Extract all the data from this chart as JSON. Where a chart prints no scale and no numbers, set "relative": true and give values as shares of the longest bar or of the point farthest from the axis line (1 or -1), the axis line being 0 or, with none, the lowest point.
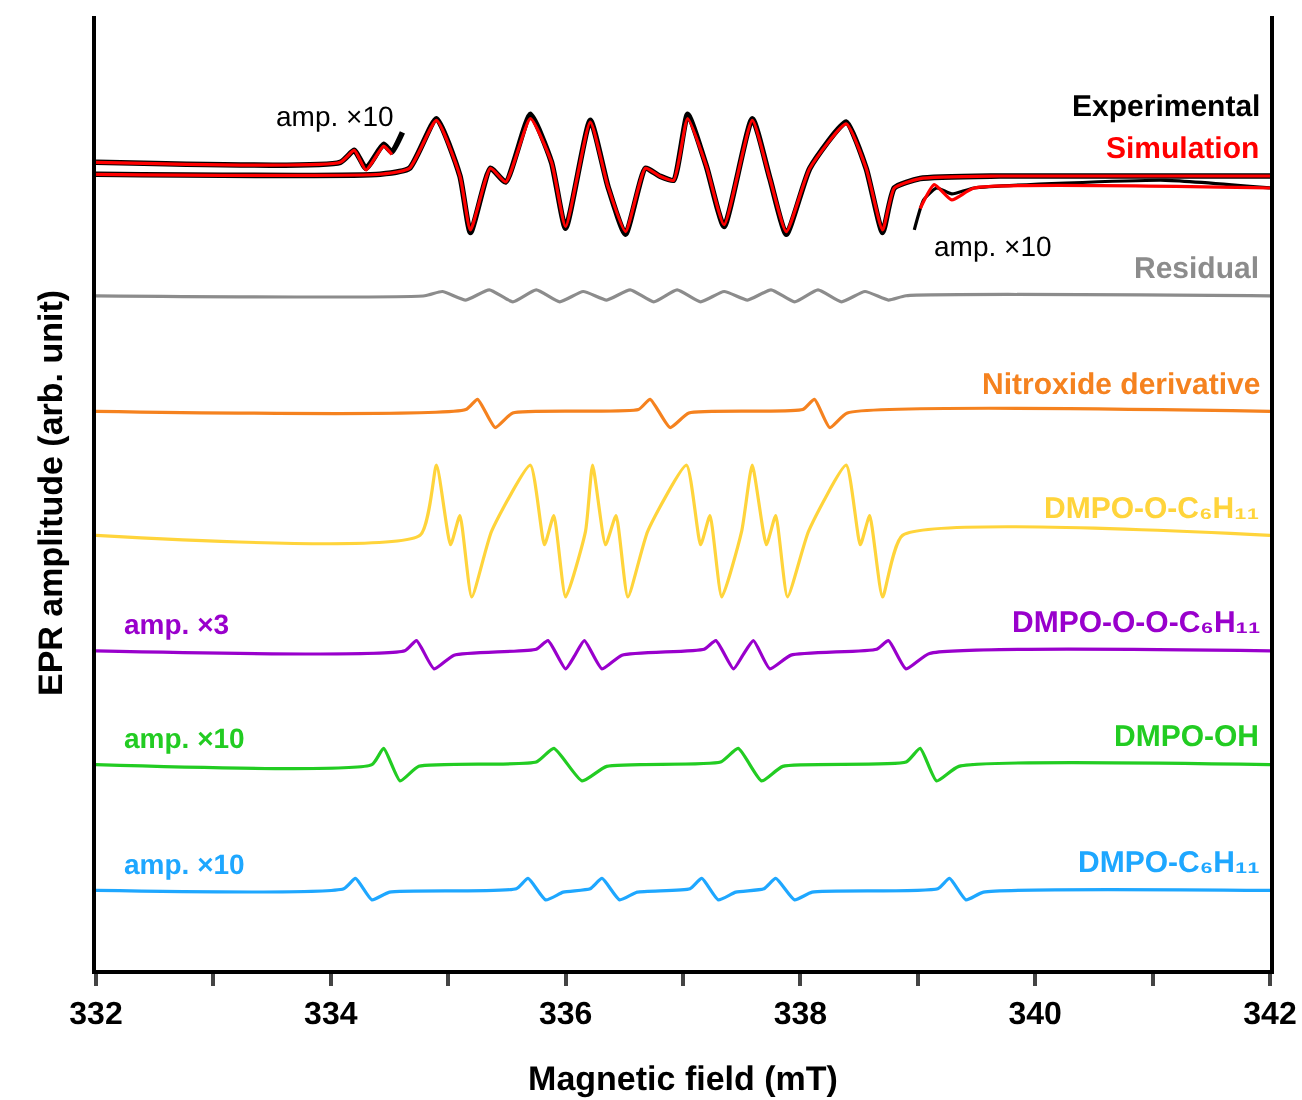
{
  "chart_data": {
    "type": "line",
    "relative": true,
    "xlabel": "Magnetic field (mT)",
    "ylabel": "EPR amplitude (arb. unit)",
    "xlim": [
      332,
      342
    ],
    "xticks": [
      332,
      {
        "value": 333,
        "label": null
      },
      334,
      {
        "value": 335,
        "label": null
      },
      336,
      {
        "value": 337,
        "label": null
      },
      338,
      {
        "value": 339,
        "label": null
      },
      340,
      {
        "value": 341,
        "label": null
      },
      342
    ],
    "tick_labels": "x",
    "legend": false,
    "series": [
      {
        "name": "Experimental",
        "color": "#000000",
        "x": [
          332,
          334.42,
          334.67,
          334.9,
          335.1,
          335.19,
          335.36,
          335.49,
          335.7,
          335.88,
          336.0,
          336.21,
          336.36,
          336.51,
          336.68,
          336.8,
          336.92,
          337.04,
          337.2,
          337.35,
          337.59,
          337.74,
          337.88,
          338.08,
          338.39,
          338.56,
          338.7,
          338.8,
          339.02,
          339.7,
          342
        ],
        "values": [
          0.93,
          0.93,
          0.937,
          0.995,
          0.928,
          0.862,
          0.937,
          0.921,
          1.0,
          0.944,
          0.867,
          0.993,
          0.916,
          0.86,
          0.937,
          0.928,
          0.923,
          1.0,
          0.939,
          0.869,
          0.995,
          0.925,
          0.86,
          0.937,
          0.991,
          0.937,
          0.862,
          0.914,
          0.925,
          0.928,
          0.928
        ]
      },
      {
        "name": "Simulation",
        "color": "#ff0000",
        "x": [
          332,
          334.42,
          334.67,
          334.9,
          335.1,
          335.19,
          335.36,
          335.49,
          335.7,
          335.88,
          336.0,
          336.21,
          336.36,
          336.51,
          336.68,
          336.8,
          336.92,
          337.04,
          337.2,
          337.35,
          337.59,
          337.74,
          337.88,
          338.08,
          338.39,
          338.56,
          338.7,
          338.8,
          339.02,
          339.7,
          342
        ],
        "values": [
          0.93,
          0.93,
          0.937,
          0.993,
          0.928,
          0.865,
          0.937,
          0.921,
          0.995,
          0.944,
          0.869,
          0.991,
          0.916,
          0.863,
          0.937,
          0.928,
          0.923,
          0.995,
          0.939,
          0.871,
          0.993,
          0.925,
          0.863,
          0.937,
          0.989,
          0.937,
          0.865,
          0.914,
          0.925,
          0.928,
          0.928
        ]
      },
      {
        "color": "#000000",
        "x": [
          332,
          334.08,
          334.2,
          334.3,
          334.45,
          334.52,
          334.61
        ],
        "values": [
          0.944,
          0.944,
          0.958,
          0.937,
          0.965,
          0.956,
          0.979
        ]
      },
      {
        "color": "#ff0000",
        "x": [
          332,
          334.08,
          334.2,
          334.3,
          334.45,
          334.52
        ],
        "values": [
          0.944,
          0.944,
          0.958,
          0.935,
          0.963,
          0.953
        ]
      },
      {
        "color": "#000000",
        "x": [
          338.97,
          339.05,
          339.16,
          339.29,
          339.48,
          341.11,
          342
        ],
        "values": [
          0.865,
          0.9,
          0.914,
          0.907,
          0.914,
          0.923,
          0.914
        ]
      },
      {
        "color": "#ff0000",
        "x": [
          339.02,
          339.14,
          339.29,
          339.48,
          342
        ],
        "values": [
          0.89,
          0.918,
          0.9,
          0.914,
          0.914
        ]
      },
      {
        "name": "Residual",
        "color": "#8c8c8c",
        "x": [
          332,
          334.8,
          334.95,
          335.15,
          335.35,
          335.55,
          335.75,
          335.95,
          336.15,
          336.35,
          336.55,
          336.75,
          336.95,
          337.15,
          337.35,
          337.55,
          337.75,
          337.95,
          338.15,
          338.35,
          338.55,
          338.75,
          338.9,
          342
        ],
        "values": [
          0.788,
          0.788,
          0.793,
          0.783,
          0.795,
          0.781,
          0.795,
          0.781,
          0.793,
          0.783,
          0.795,
          0.781,
          0.795,
          0.781,
          0.793,
          0.783,
          0.795,
          0.781,
          0.795,
          0.781,
          0.793,
          0.783,
          0.788,
          0.788
        ]
      },
      {
        "name": "Nitroxide derivative",
        "color": "#f5821f",
        "x": [
          332,
          335.15,
          335.25,
          335.4,
          335.55,
          336.62,
          336.72,
          336.89,
          337.05,
          338.02,
          338.12,
          338.25,
          338.4,
          342
        ],
        "values": [
          0.653,
          0.655,
          0.667,
          0.634,
          0.651,
          0.655,
          0.667,
          0.634,
          0.651,
          0.655,
          0.667,
          0.634,
          0.651,
          0.653
        ]
      },
      {
        "name": "DMPO-O-C₆H₁₁",
        "color": "#ffd43b",
        "x": [
          332,
          334.76,
          334.9,
          335.02,
          335.1,
          335.2,
          335.37,
          335.7,
          335.82,
          335.9,
          336.0,
          336.17,
          336.23,
          336.34,
          336.43,
          336.53,
          336.7,
          337.03,
          337.15,
          337.23,
          337.33,
          337.5,
          337.59,
          337.71,
          337.79,
          337.89,
          338.07,
          338.39,
          338.51,
          338.59,
          338.7,
          338.87,
          342
        ],
        "values": [
          0.508,
          0.508,
          0.59,
          0.497,
          0.531,
          0.436,
          0.513,
          0.59,
          0.497,
          0.531,
          0.436,
          0.513,
          0.59,
          0.497,
          0.531,
          0.436,
          0.513,
          0.59,
          0.497,
          0.531,
          0.436,
          0.513,
          0.59,
          0.497,
          0.531,
          0.436,
          0.513,
          0.59,
          0.497,
          0.531,
          0.436,
          0.508,
          0.508
        ]
      },
      {
        "name": "DMPO-O-O-C₆H₁₁",
        "color": "#9900cc",
        "x": [
          332,
          334.63,
          334.73,
          334.88,
          335.05,
          335.75,
          335.85,
          336.0,
          336.08,
          336.16,
          336.31,
          336.48,
          337.18,
          337.28,
          337.43,
          337.51,
          337.6,
          337.74,
          337.92,
          338.65,
          338.75,
          338.9,
          339.1,
          342
        ],
        "values": [
          0.373,
          0.373,
          0.385,
          0.352,
          0.368,
          0.375,
          0.385,
          0.352,
          0.368,
          0.385,
          0.352,
          0.368,
          0.375,
          0.385,
          0.352,
          0.368,
          0.385,
          0.352,
          0.368,
          0.375,
          0.385,
          0.352,
          0.37,
          0.373
        ]
      },
      {
        "name": "DMPO-OH",
        "color": "#22cc22",
        "x": [
          332,
          334.35,
          334.45,
          334.59,
          334.75,
          335.75,
          335.9,
          336.14,
          336.35,
          337.32,
          337.47,
          337.67,
          337.85,
          338.9,
          339.02,
          339.16,
          339.35,
          342
        ],
        "values": [
          0.24,
          0.24,
          0.259,
          0.221,
          0.238,
          0.243,
          0.259,
          0.221,
          0.238,
          0.243,
          0.259,
          0.221,
          0.238,
          0.243,
          0.259,
          0.221,
          0.238,
          0.24
        ]
      },
      {
        "name": "DMPO-C₆H₁₁",
        "color": "#1ea7ff",
        "x": [
          332,
          334.11,
          334.21,
          334.35,
          334.5,
          335.58,
          335.68,
          335.83,
          335.98,
          336.21,
          336.31,
          336.46,
          336.61,
          337.06,
          337.16,
          337.3,
          337.45,
          337.69,
          337.79,
          337.95,
          338.1,
          339.17,
          339.27,
          339.41,
          339.56,
          342
        ],
        "values": [
          0.093,
          0.095,
          0.107,
          0.082,
          0.091,
          0.095,
          0.107,
          0.082,
          0.091,
          0.095,
          0.107,
          0.082,
          0.091,
          0.095,
          0.107,
          0.082,
          0.091,
          0.095,
          0.107,
          0.082,
          0.091,
          0.095,
          0.107,
          0.082,
          0.091,
          0.093
        ]
      }
    ],
    "annotations": [
      {
        "text": "amp. ×10",
        "x": 334.61,
        "y": 0.979
      },
      {
        "text": "amp. ×10",
        "x": 338.97,
        "y": 0.865
      },
      {
        "text": "amp. ×3",
        "x": 332.2,
        "y": 0.373
      },
      {
        "text": "amp. ×10",
        "x": 332.2,
        "y": 0.24
      },
      {
        "text": "amp. ×10",
        "x": 332.2,
        "y": 0.093
      }
    ]
  }
}
